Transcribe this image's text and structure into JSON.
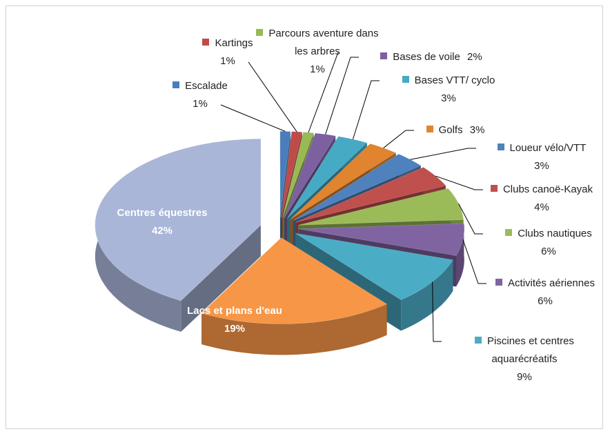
{
  "chart_data": {
    "type": "pie3d",
    "categories": [
      "Escalade",
      "Kartings",
      "Parcours aventure dans les arbres",
      "Bases de voile",
      "Bases VTT/ cyclo",
      "Golfs",
      "Loueur vélo/VTT",
      "Clubs canoë-Kayak",
      "Clubs nautiques",
      "Activités aériennes",
      "Piscines et centres aquarécréatifs",
      "Lacs et plans d'eau",
      "Centres équestres"
    ],
    "values": [
      1,
      1,
      1,
      2,
      3,
      3,
      3,
      4,
      6,
      6,
      9,
      19,
      42
    ],
    "value_labels": [
      "1%",
      "1%",
      "1%",
      "2%",
      "3%",
      "3%",
      "3%",
      "4%",
      "6%",
      "6%",
      "9%",
      "19%",
      "42%"
    ],
    "colors": [
      "#4a7ebb",
      "#be4b48",
      "#98b954",
      "#7d60a0",
      "#46aac5",
      "#e0842f",
      "#4f81bd",
      "#c0504d",
      "#9bbb59",
      "#8064a2",
      "#4bacc6",
      "#f79646",
      "#a9b6d8"
    ]
  }
}
